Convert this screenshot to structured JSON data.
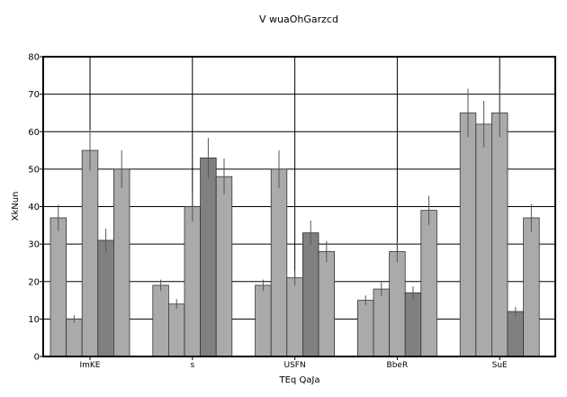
{
  "chart_data": {
    "type": "bar",
    "title": "V wuaOhGarzcd",
    "xlabel": "TEq QaJa",
    "ylabel": "XkNun",
    "ylim": [
      0,
      80
    ],
    "yticks": [
      0,
      10,
      20,
      30,
      40,
      50,
      60,
      70,
      80
    ],
    "grid": true,
    "legend": "none",
    "categories": [
      "ImKE",
      "s",
      "USFN",
      "BbeR",
      "SuE"
    ],
    "series": [
      {
        "values": [
          37,
          19,
          19,
          15,
          65
        ],
        "errors": [
          3.5,
          1.5,
          1.5,
          1.3,
          6.5
        ],
        "color": "#aaaaaa"
      },
      {
        "values": [
          10,
          14,
          50,
          18,
          62
        ],
        "errors": [
          1,
          1.3,
          5,
          1.8,
          6.2
        ],
        "color": "#aaaaaa"
      },
      {
        "values": [
          55,
          40,
          21,
          28,
          65
        ],
        "errors": [
          5.5,
          4,
          2.1,
          2.8,
          6.5
        ],
        "color": "#aaaaaa"
      },
      {
        "values": [
          31,
          53,
          33,
          17,
          12
        ],
        "errors": [
          3.1,
          5.3,
          3.3,
          1.7,
          1.2
        ],
        "color": "#808080"
      },
      {
        "values": [
          50,
          48,
          28,
          39,
          37
        ],
        "errors": [
          5,
          4.8,
          2.8,
          3.9,
          3.7
        ],
        "color": "#aaaaaa"
      }
    ]
  }
}
